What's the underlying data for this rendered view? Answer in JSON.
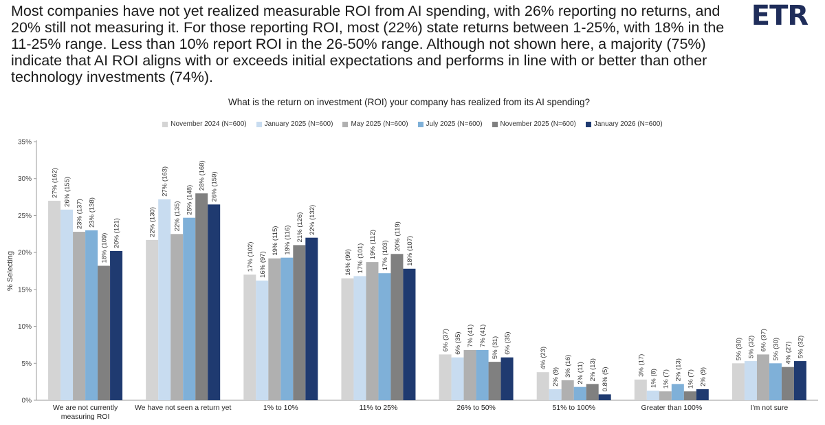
{
  "headline": "Most companies have not yet realized measurable ROI from AI spending, with 26% reporting no returns, and 20% still not measuring it. For those reporting ROI, most (22%) state returns between 1-25%, with 18% in the 11-25% range. Less than 10% report ROI in the 26-50% range. Although not shown here, a majority (75%) indicate that AI ROI aligns with or exceeds initial expectations and performs in line with or better than other technology investments (74%).",
  "logo": {
    "text": "ETR",
    "color": "#1f2d5a"
  },
  "chart_data": {
    "type": "bar",
    "title": "What is the return on investment (ROI) your company has realized from its AI spending?",
    "ylabel": "% Selecting",
    "ylim": [
      0,
      35
    ],
    "yticks": [
      "0%",
      "5%",
      "10%",
      "15%",
      "20%",
      "25%",
      "30%",
      "35%"
    ],
    "legend_position": "top",
    "grid": false,
    "categories": [
      [
        "We are not currently",
        "measuring ROI"
      ],
      [
        "We have not seen a return yet"
      ],
      [
        "1% to 10%"
      ],
      [
        "11% to 25%"
      ],
      [
        "26% to 50%"
      ],
      [
        "51% to 100%"
      ],
      [
        "Greater than 100%"
      ],
      [
        "I'm not sure"
      ]
    ],
    "series": [
      {
        "name": "November 2024 (N=600)",
        "color": "#d4d4d4",
        "values": [
          27,
          21.7,
          17,
          16.5,
          6.2,
          3.8,
          2.8,
          5
        ],
        "labels": [
          "27% (162)",
          "22% (130)",
          "17% (102)",
          "16% (99)",
          "6% (37)",
          "4% (23)",
          "3% (17)",
          "5% (30)"
        ]
      },
      {
        "name": "January 2025 (N=600)",
        "color": "#c8dcf0",
        "values": [
          25.8,
          27.2,
          16.2,
          16.8,
          5.8,
          1.5,
          1.3,
          5.3
        ],
        "labels": [
          "26% (155)",
          "27% (163)",
          "16% (97)",
          "17% (101)",
          "6% (35)",
          "2% (9)",
          "1% (8)",
          "5% (32)"
        ]
      },
      {
        "name": "May 2025 (N=600)",
        "color": "#b0b0b0",
        "values": [
          22.8,
          22.5,
          19.2,
          18.7,
          6.8,
          2.7,
          1.2,
          6.2
        ],
        "labels": [
          "23% (137)",
          "22% (135)",
          "19% (115)",
          "19% (112)",
          "7% (41)",
          "3% (16)",
          "1% (7)",
          "6% (37)"
        ]
      },
      {
        "name": "July 2025 (N=600)",
        "color": "#7fb0d8",
        "values": [
          23,
          24.7,
          19.3,
          17.2,
          6.8,
          1.8,
          2.2,
          5
        ],
        "labels": [
          "23% (138)",
          "25% (148)",
          "19% (116)",
          "17% (103)",
          "7% (41)",
          "2% (11)",
          "2% (13)",
          "5% (30)"
        ]
      },
      {
        "name": "November 2025 (N=600)",
        "color": "#808080",
        "values": [
          18.2,
          28,
          21,
          19.8,
          5.2,
          2.2,
          1.2,
          4.5
        ],
        "labels": [
          "18% (109)",
          "28% (168)",
          "21% (126)",
          "20% (119)",
          "5% (31)",
          "2% (13)",
          "1% (7)",
          "4% (27)"
        ]
      },
      {
        "name": "January 2026 (N=600)",
        "color": "#1f3a70",
        "values": [
          20.2,
          26.5,
          22,
          17.8,
          5.8,
          0.8,
          1.5,
          5.3
        ],
        "labels": [
          "20% (121)",
          "26% (159)",
          "22% (132)",
          "18% (107)",
          "6% (35)",
          "0.8% (5)",
          "2% (9)",
          "5% (32)"
        ]
      }
    ]
  }
}
